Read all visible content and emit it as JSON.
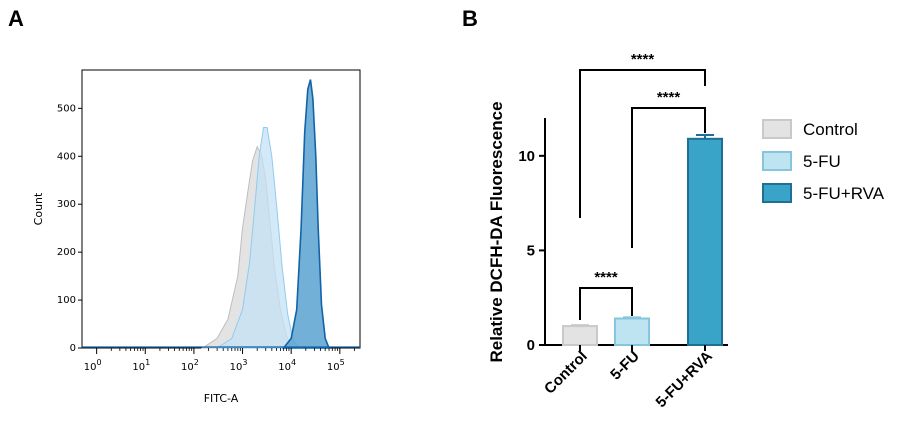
{
  "chart_data": [
    {
      "panel": "A",
      "type": "area",
      "xlabel": "FITC-A",
      "ylabel": "Count",
      "x_scale": "log",
      "xlim": [
        0.5,
        260000
      ],
      "ylim": [
        0,
        580
      ],
      "x_ticks": [
        {
          "base": "10",
          "exp": "0"
        },
        {
          "base": "10",
          "exp": "1"
        },
        {
          "base": "10",
          "exp": "2"
        },
        {
          "base": "10",
          "exp": "3"
        },
        {
          "base": "10",
          "exp": "4"
        },
        {
          "base": "10",
          "exp": "5"
        }
      ],
      "y_ticks": [
        "0",
        "100",
        "200",
        "300",
        "400",
        "500"
      ],
      "series": [
        {
          "name": "Control",
          "fill": "#d9d9d9",
          "stroke": "#bdbdbd",
          "x": [
            150,
            300,
            500,
            800,
            1000,
            1300,
            1600,
            2000,
            2500,
            3000,
            3600,
            4500,
            6000,
            8000,
            10000,
            13000
          ],
          "values": [
            0,
            20,
            60,
            150,
            250,
            330,
            390,
            420,
            400,
            350,
            270,
            170,
            80,
            25,
            5,
            0
          ]
        },
        {
          "name": "5-FU",
          "fill": "#c5e2f5",
          "stroke": "#8fcbef",
          "x": [
            300,
            600,
            1000,
            1400,
            1800,
            2200,
            2700,
            3200,
            4000,
            5000,
            6500,
            8500,
            11000,
            15000
          ],
          "values": [
            0,
            20,
            80,
            180,
            300,
            400,
            460,
            460,
            400,
            300,
            170,
            70,
            15,
            0
          ]
        },
        {
          "name": "5-FU+RVA",
          "fill": "#5aa2d1",
          "stroke": "#1263a8",
          "x": [
            7000,
            10000,
            13000,
            16000,
            19000,
            22000,
            25000,
            28000,
            32000,
            36000,
            42000,
            50000,
            60000
          ],
          "values": [
            0,
            20,
            80,
            250,
            450,
            540,
            560,
            520,
            400,
            250,
            90,
            20,
            0
          ]
        }
      ]
    },
    {
      "panel": "B",
      "type": "bar",
      "ylabel": "Relative DCFH-DA Fluorescence",
      "categories": [
        "Control",
        "5-FU",
        "5-FU+RVA"
      ],
      "values": [
        1.0,
        1.4,
        10.9
      ],
      "errors": [
        0.05,
        0.06,
        0.2
      ],
      "ylim": [
        0,
        12
      ],
      "y_ticks": [
        "0",
        "5",
        "10"
      ],
      "colors": [
        "#e3e3e3",
        "#bfe4f1",
        "#3aa3c8"
      ],
      "edge_colors": [
        "#c9c9c9",
        "#86c6dd",
        "#1e6f96"
      ],
      "significance": [
        {
          "from": 0,
          "to": 1,
          "label": "****"
        },
        {
          "from": 1,
          "to": 2,
          "label": "****"
        },
        {
          "from": 0,
          "to": 2,
          "label": "****"
        }
      ]
    }
  ],
  "panels": {
    "a_label": "A",
    "b_label": "B"
  },
  "legend": {
    "items": [
      {
        "label": "Control",
        "fill": "#e3e3e3",
        "stroke": "#c9c9c9"
      },
      {
        "label": "5-FU",
        "fill": "#bfe4f1",
        "stroke": "#86c6dd"
      },
      {
        "label": "5-FU+RVA",
        "fill": "#3aa3c8",
        "stroke": "#1e6f96"
      }
    ]
  }
}
